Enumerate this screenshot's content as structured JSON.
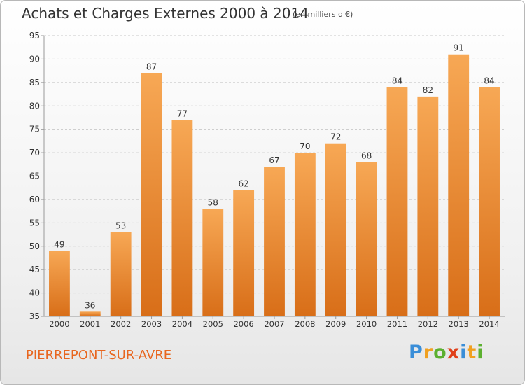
{
  "title": "Achats et Charges Externes 2000 à 2014",
  "subtitle": "(en milliers d'€)",
  "commune": "PIERREPONT-SUR-AVRE",
  "logo": {
    "letters": [
      "P",
      "r",
      "o",
      "x",
      "i",
      "t",
      "i"
    ],
    "colors": [
      "#3a8ed8",
      "#f0a020",
      "#5cb030",
      "#e0401a",
      "#3a8ed8",
      "#f0a020",
      "#5cb030"
    ]
  },
  "colors": {
    "bar_light": "#f7a855",
    "bar_dark": "#d86e18",
    "grid": "#c8c8c8",
    "text": "#333333",
    "accent": "#e8661f"
  },
  "chart_data": {
    "type": "bar",
    "categories": [
      "2000",
      "2001",
      "2002",
      "2003",
      "2004",
      "2005",
      "2006",
      "2007",
      "2008",
      "2009",
      "2010",
      "2011",
      "2012",
      "2013",
      "2014"
    ],
    "values": [
      49,
      36,
      53,
      87,
      77,
      58,
      62,
      67,
      70,
      72,
      68,
      84,
      82,
      91,
      84
    ],
    "data_labels": [
      "49",
      "36",
      "53",
      "87",
      "77",
      "58",
      "62",
      "67",
      "70",
      "72",
      "68",
      "84",
      "82",
      "91",
      "84"
    ],
    "ylim": [
      35,
      95
    ],
    "yticks": [
      35,
      40,
      45,
      50,
      55,
      60,
      65,
      70,
      75,
      80,
      85,
      90,
      95
    ],
    "ytick_labels": [
      "35",
      "40",
      "45",
      "50",
      "55",
      "60",
      "65",
      "70",
      "75",
      "80",
      "85",
      "90",
      "95"
    ],
    "grid": true,
    "xlabel": "",
    "ylabel": ""
  }
}
